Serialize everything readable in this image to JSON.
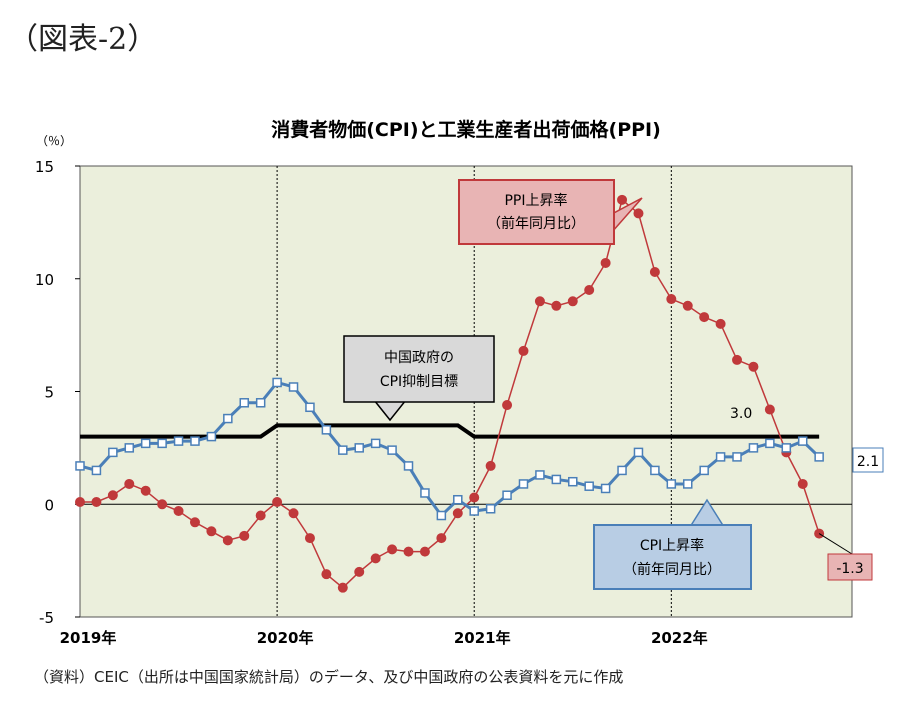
{
  "figure_label": "（図表-2）",
  "source_note": "（資料）CEIC（出所は中国国家統計局）のデータ、及び中国政府の公表資料を元に作成",
  "colors": {
    "plot_bg": "#ebefdc",
    "cpi": "#4a7fb8",
    "ppi": "#c0393b",
    "target": "#000000",
    "ppi_box_fill": "#e8b4b4",
    "ppi_box_stroke": "#c0393b",
    "cpi_box_fill": "#b8cde4",
    "cpi_box_stroke": "#4a7fb8",
    "target_box_fill": "#d9d9d9",
    "target_box_stroke": "#000000"
  },
  "chart_data": {
    "type": "line",
    "title": "消費者物価(CPI)と工業生産者出荷価格(PPI)",
    "unit_label": "（％）",
    "ylim": [
      -5,
      15
    ],
    "yticks": [
      -5,
      0,
      5,
      10,
      15
    ],
    "xlim": [
      0,
      47
    ],
    "year_labels": [
      {
        "label": "2019年",
        "index": 0
      },
      {
        "label": "2020年",
        "index": 12
      },
      {
        "label": "2021年",
        "index": 24
      },
      {
        "label": "2022年",
        "index": 36
      }
    ],
    "year_dividers": [
      12,
      24,
      36
    ],
    "series": [
      {
        "key": "cpi",
        "values": [
          1.7,
          1.5,
          2.3,
          2.5,
          2.7,
          2.7,
          2.8,
          2.8,
          3.0,
          3.8,
          4.5,
          4.5,
          5.4,
          5.2,
          4.3,
          3.3,
          2.4,
          2.5,
          2.7,
          2.4,
          1.7,
          0.5,
          -0.5,
          0.2,
          -0.3,
          -0.2,
          0.4,
          0.9,
          1.3,
          1.1,
          1.0,
          0.8,
          0.7,
          1.5,
          2.3,
          1.5,
          0.9,
          0.9,
          1.5,
          2.1,
          2.1,
          2.5,
          2.7,
          2.5,
          2.8,
          2.1
        ]
      },
      {
        "key": "ppi",
        "values": [
          0.1,
          0.1,
          0.4,
          0.9,
          0.6,
          0.0,
          -0.3,
          -0.8,
          -1.2,
          -1.6,
          -1.4,
          -0.5,
          0.1,
          -0.4,
          -1.5,
          -3.1,
          -3.7,
          -3.0,
          -2.4,
          -2.0,
          -2.1,
          -2.1,
          -1.5,
          -0.4,
          0.3,
          1.7,
          4.4,
          6.8,
          9.0,
          8.8,
          9.0,
          9.5,
          10.7,
          13.5,
          12.9,
          10.3,
          9.1,
          8.8,
          8.3,
          8.0,
          6.4,
          6.1,
          4.2,
          2.3,
          0.9,
          -1.3
        ]
      },
      {
        "key": "target",
        "points": [
          [
            0,
            3.0
          ],
          [
            11,
            3.0
          ],
          [
            12,
            3.5
          ],
          [
            23,
            3.5
          ],
          [
            24,
            3.0
          ],
          [
            45,
            3.0
          ]
        ]
      }
    ],
    "annotations": {
      "ppi_box": [
        "PPI上昇率",
        "（前年同月比）"
      ],
      "cpi_box": [
        "CPI上昇率",
        "（前年同月比）"
      ],
      "target_box": [
        "中国政府の",
        "CPI抑制目標"
      ],
      "target_value": "3.0",
      "cpi_last": "2.1",
      "ppi_last": "-1.3"
    }
  }
}
